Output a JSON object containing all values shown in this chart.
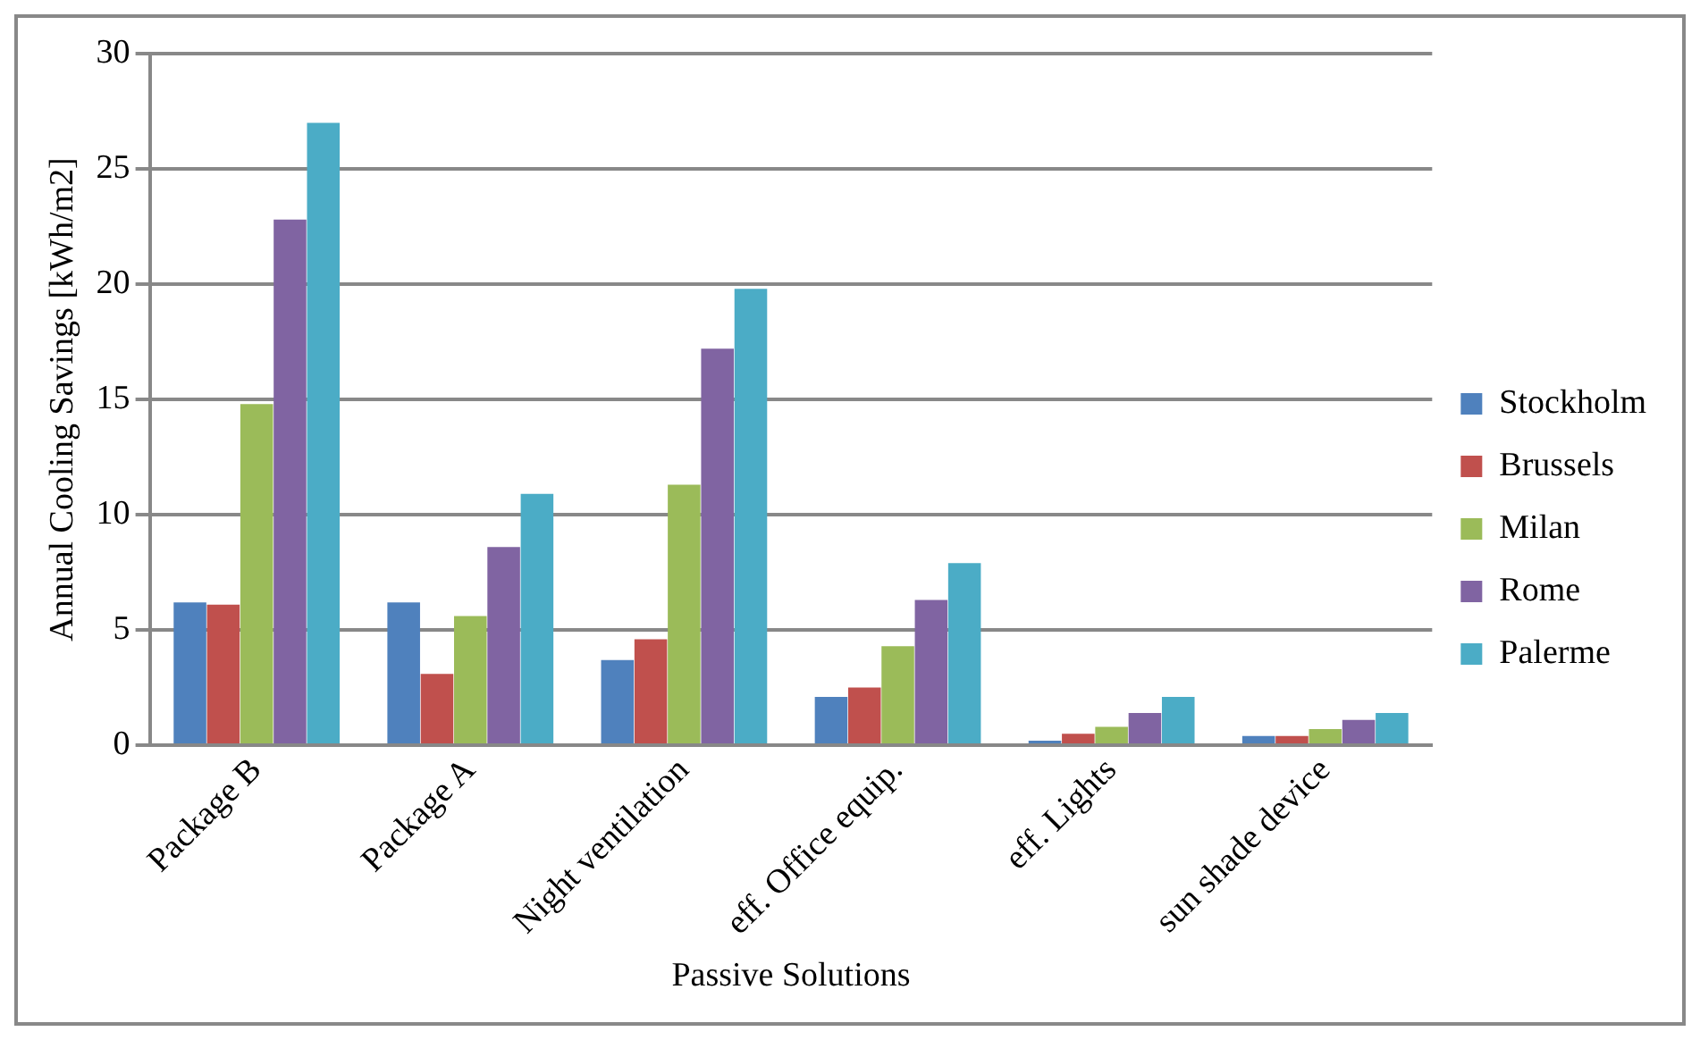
{
  "chart_data": {
    "type": "bar",
    "xlabel": "Passive Solutions",
    "ylabel": "Annual Cooling Savings [kWh/m2]",
    "categories": [
      "Package B",
      "Package A",
      "Night ventilation",
      "eff. Office equip.",
      "eff. Lights",
      "sun shade device"
    ],
    "series": [
      {
        "name": "Stockholm",
        "color": "#4f81bd",
        "values": [
          6.2,
          6.2,
          3.7,
          2.1,
          0.2,
          0.4
        ]
      },
      {
        "name": "Brussels",
        "color": "#c0504d",
        "values": [
          6.1,
          3.1,
          4.6,
          2.5,
          0.5,
          0.4
        ]
      },
      {
        "name": "Milan",
        "color": "#9bbb59",
        "values": [
          14.8,
          5.6,
          11.3,
          4.3,
          0.8,
          0.7
        ]
      },
      {
        "name": "Rome",
        "color": "#8064a2",
        "values": [
          22.8,
          8.6,
          17.2,
          6.3,
          1.4,
          1.1
        ]
      },
      {
        "name": "Palerme",
        "color": "#4bacc6",
        "values": [
          27.0,
          10.9,
          19.8,
          7.9,
          2.1,
          1.4
        ]
      }
    ],
    "ylim": [
      0,
      30
    ],
    "yticks": [
      0,
      5,
      10,
      15,
      20,
      25,
      30
    ],
    "grid": "y",
    "legend": "right"
  }
}
